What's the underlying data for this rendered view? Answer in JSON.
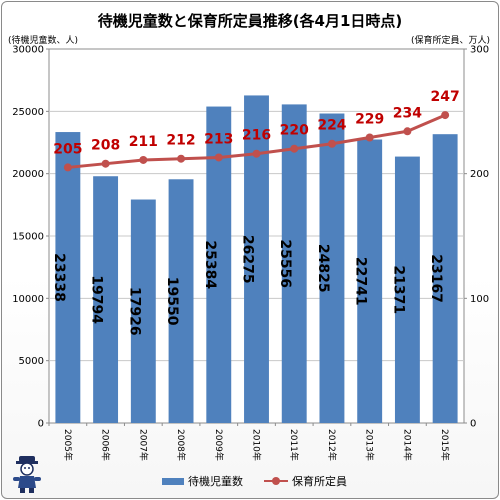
{
  "title": "待機児童数と保育所定員推移(各4月1日時点)",
  "left_unit": "(待機児童数、人)",
  "right_unit": "(保育所定員、万人)",
  "legend": {
    "bar_label": "待機児童数",
    "line_label": "保育所定員"
  },
  "colors": {
    "bar": "#4f81bd",
    "line": "#c0504d",
    "line_label": "#c00000",
    "grid": "#c8c8c8"
  },
  "mascot_icon": "mascot-icon",
  "chart_data": {
    "type": "bar+line",
    "categories": [
      "2005年",
      "2006年",
      "2007年",
      "2008年",
      "2009年",
      "2010年",
      "2011年",
      "2012年",
      "2013年",
      "2014年",
      "2015年"
    ],
    "series": [
      {
        "name": "待機児童数",
        "type": "bar",
        "axis": "left",
        "values": [
          23338,
          19794,
          17926,
          19550,
          25384,
          26275,
          25556,
          24825,
          22741,
          21371,
          23167
        ]
      },
      {
        "name": "保育所定員",
        "type": "line",
        "axis": "right",
        "values": [
          205,
          208,
          211,
          212,
          213,
          216,
          220,
          224,
          229,
          234,
          247
        ]
      }
    ],
    "left_axis": {
      "min": 0,
      "max": 30000,
      "step": 5000,
      "ticks": [
        "0",
        "5000",
        "10000",
        "15000",
        "20000",
        "25000",
        "30000"
      ]
    },
    "right_axis": {
      "min": 0,
      "max": 300,
      "step": 100,
      "ticks": [
        "0",
        "100",
        "200",
        "300"
      ]
    },
    "grid": true,
    "legend_position": "bottom"
  }
}
